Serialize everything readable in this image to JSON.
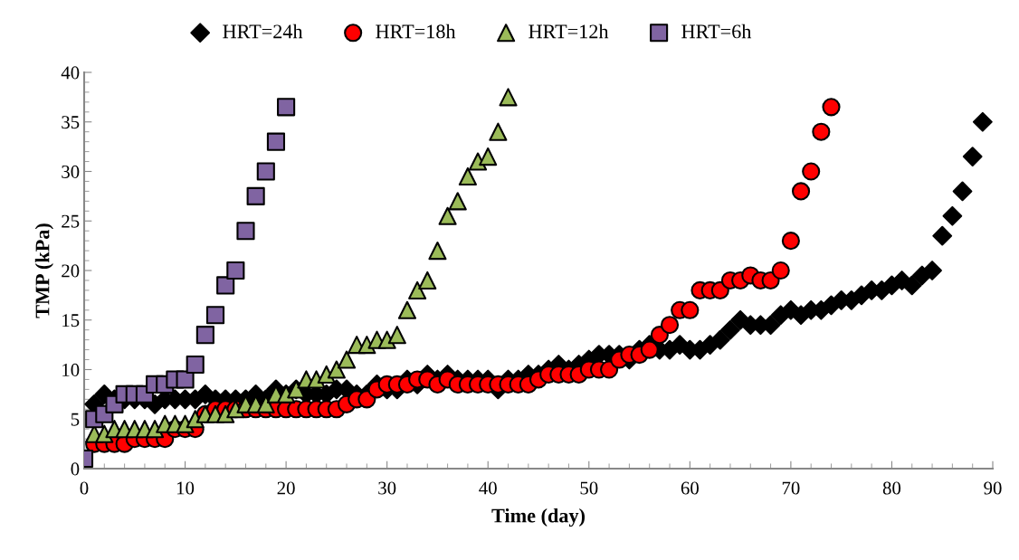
{
  "chart_data": {
    "type": "scatter",
    "xlabel": "Time (day)",
    "ylabel": "TMP (kPa)",
    "xlim": [
      0,
      90
    ],
    "xticks": [
      0,
      10,
      20,
      30,
      40,
      50,
      60,
      70,
      80,
      90
    ],
    "ylim": [
      0,
      40
    ],
    "yticks": [
      0,
      5,
      10,
      15,
      20,
      25,
      30,
      35,
      40
    ],
    "grid": false,
    "legend": "top",
    "series": [
      {
        "name": "HRT=24h",
        "color": "#000000",
        "marker": "diamond",
        "x": [
          1,
          2,
          3,
          4,
          5,
          6,
          7,
          8,
          9,
          10,
          11,
          12,
          13,
          14,
          15,
          16,
          17,
          18,
          19,
          20,
          21,
          22,
          23,
          24,
          25,
          26,
          27,
          28,
          29,
          30,
          31,
          32,
          33,
          34,
          35,
          36,
          37,
          38,
          39,
          40,
          41,
          42,
          43,
          44,
          45,
          46,
          47,
          48,
          49,
          50,
          51,
          52,
          53,
          54,
          55,
          56,
          57,
          58,
          59,
          60,
          61,
          62,
          63,
          64,
          65,
          66,
          67,
          68,
          69,
          70,
          71,
          72,
          73,
          74,
          75,
          76,
          77,
          78,
          79,
          80,
          81,
          82,
          83,
          84,
          85,
          86,
          87,
          88,
          89
        ],
        "values": [
          6.5,
          7.5,
          7,
          7,
          7,
          7,
          6.5,
          7,
          7,
          7,
          7,
          7.5,
          7,
          7,
          7,
          7,
          7.5,
          7,
          8,
          7.5,
          8,
          7.5,
          7.5,
          7.5,
          8,
          8,
          7.5,
          7.5,
          8.5,
          8,
          8,
          9,
          8.5,
          9.5,
          9,
          9.5,
          9,
          9,
          9,
          9,
          8,
          9,
          9,
          9.5,
          9.5,
          10,
          10.5,
          10,
          10.5,
          11,
          11.5,
          11.5,
          11.5,
          11,
          12,
          12.5,
          12,
          12,
          12.5,
          12,
          12,
          12.5,
          13,
          14,
          15,
          14.5,
          14.5,
          14.5,
          15.5,
          16,
          15.5,
          16,
          16,
          16.5,
          17,
          17,
          17.5,
          18,
          18,
          18.5,
          19,
          18.5,
          19.5,
          20,
          23.5,
          25.5,
          28,
          31.5,
          35
        ]
      },
      {
        "name": "HRT=18h",
        "color": "#ff0000",
        "marker": "circle",
        "x": [
          1,
          2,
          3,
          4,
          5,
          6,
          7,
          8,
          9,
          10,
          11,
          12,
          13,
          14,
          15,
          16,
          17,
          18,
          19,
          20,
          21,
          22,
          23,
          24,
          25,
          26,
          27,
          28,
          29,
          30,
          31,
          32,
          33,
          34,
          35,
          36,
          37,
          38,
          39,
          40,
          41,
          42,
          43,
          44,
          45,
          46,
          47,
          48,
          49,
          50,
          51,
          52,
          53,
          54,
          55,
          56,
          57,
          58,
          59,
          60,
          61,
          62,
          63,
          64,
          65,
          66,
          67,
          68,
          69,
          70,
          71,
          72,
          73,
          74
        ],
        "values": [
          2.5,
          2.5,
          2.5,
          2.5,
          3,
          3,
          3,
          3,
          4,
          4,
          4,
          5.5,
          6,
          6,
          6,
          6,
          6,
          6,
          6,
          6,
          6,
          6,
          6,
          6,
          6,
          6.5,
          7,
          7,
          8,
          8.5,
          8.5,
          8.5,
          9,
          9,
          8.5,
          9,
          8.5,
          8.5,
          8.5,
          8.5,
          8.5,
          8.5,
          8.5,
          8.5,
          9,
          9.5,
          9.5,
          9.5,
          9.5,
          10,
          10,
          10,
          11,
          11.5,
          11.5,
          12,
          13.5,
          14.5,
          16,
          16,
          18,
          18,
          18,
          19,
          19,
          19.5,
          19,
          19,
          20,
          23,
          28,
          30,
          34,
          36.5
        ]
      },
      {
        "name": "HRT=12h",
        "color": "#9bbb59",
        "marker": "triangle",
        "x": [
          1,
          2,
          3,
          4,
          5,
          6,
          7,
          8,
          9,
          10,
          11,
          12,
          13,
          14,
          15,
          16,
          17,
          18,
          19,
          20,
          21,
          22,
          23,
          24,
          25,
          26,
          27,
          28,
          29,
          30,
          31,
          32,
          33,
          34,
          35,
          36,
          37,
          38,
          39,
          40,
          41,
          42
        ],
        "values": [
          3.5,
          3.5,
          4,
          4,
          4,
          4,
          4,
          4.5,
          4.5,
          4.5,
          5,
          5.5,
          5.5,
          5.5,
          6,
          6.5,
          6.5,
          6.5,
          7.5,
          7.5,
          8,
          9,
          9,
          9.5,
          10,
          11,
          12.5,
          12.5,
          13,
          13,
          13.5,
          16,
          18,
          19,
          22,
          25.5,
          27,
          29.5,
          31,
          31.5,
          34,
          37.5
        ]
      },
      {
        "name": "HRT=6h",
        "color": "#8064a2",
        "marker": "square",
        "x": [
          0,
          1,
          2,
          3,
          4,
          5,
          6,
          7,
          8,
          9,
          10,
          11,
          12,
          13,
          14,
          15,
          16,
          17,
          18,
          19,
          20
        ],
        "values": [
          1,
          5,
          5.5,
          6.5,
          7.5,
          7.5,
          7.5,
          8.5,
          8.5,
          9,
          9,
          10.5,
          13.5,
          15.5,
          18.5,
          20,
          24,
          27.5,
          30,
          33,
          36.5
        ]
      }
    ]
  }
}
